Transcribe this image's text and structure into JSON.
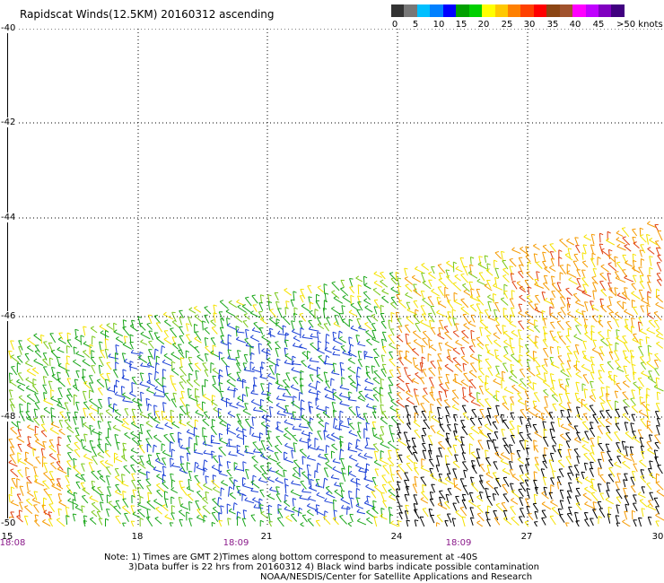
{
  "title": "Rapidscat Winds(12.5KM) 20160312 ascending",
  "colorbar": {
    "colors": [
      "#333333",
      "#777777",
      "#00bfff",
      "#0080ff",
      "#0000ff",
      "#00a000",
      "#00d000",
      "#ffff00",
      "#ffc800",
      "#ff8000",
      "#ff4000",
      "#ff0000",
      "#8b4513",
      "#a0522d",
      "#ff00ff",
      "#c000ff",
      "#8000c0",
      "#400080"
    ],
    "labels": [
      "0",
      "5",
      "10",
      "15",
      "20",
      "25",
      "30",
      "35",
      "40",
      "45",
      ">50 knots"
    ]
  },
  "map": {
    "lat_labels": [
      "-40",
      "-42",
      "-44",
      "-46",
      "-48",
      "-50"
    ],
    "lon_labels": [
      "15",
      "18",
      "21",
      "24",
      "27",
      "30"
    ],
    "time_labels": [
      "18:08",
      "18:09",
      "18:09"
    ]
  },
  "notes": {
    "line1": "Note: 1) Times are GMT 2)Times along bottom correspond to measurement at -40S",
    "line2": "3)Data buffer is 22 hrs from 20160312 4) Black wind barbs indicate possible contamination",
    "line3": "NOAA/NESDIS/Center for Satellite Applications and Research"
  }
}
